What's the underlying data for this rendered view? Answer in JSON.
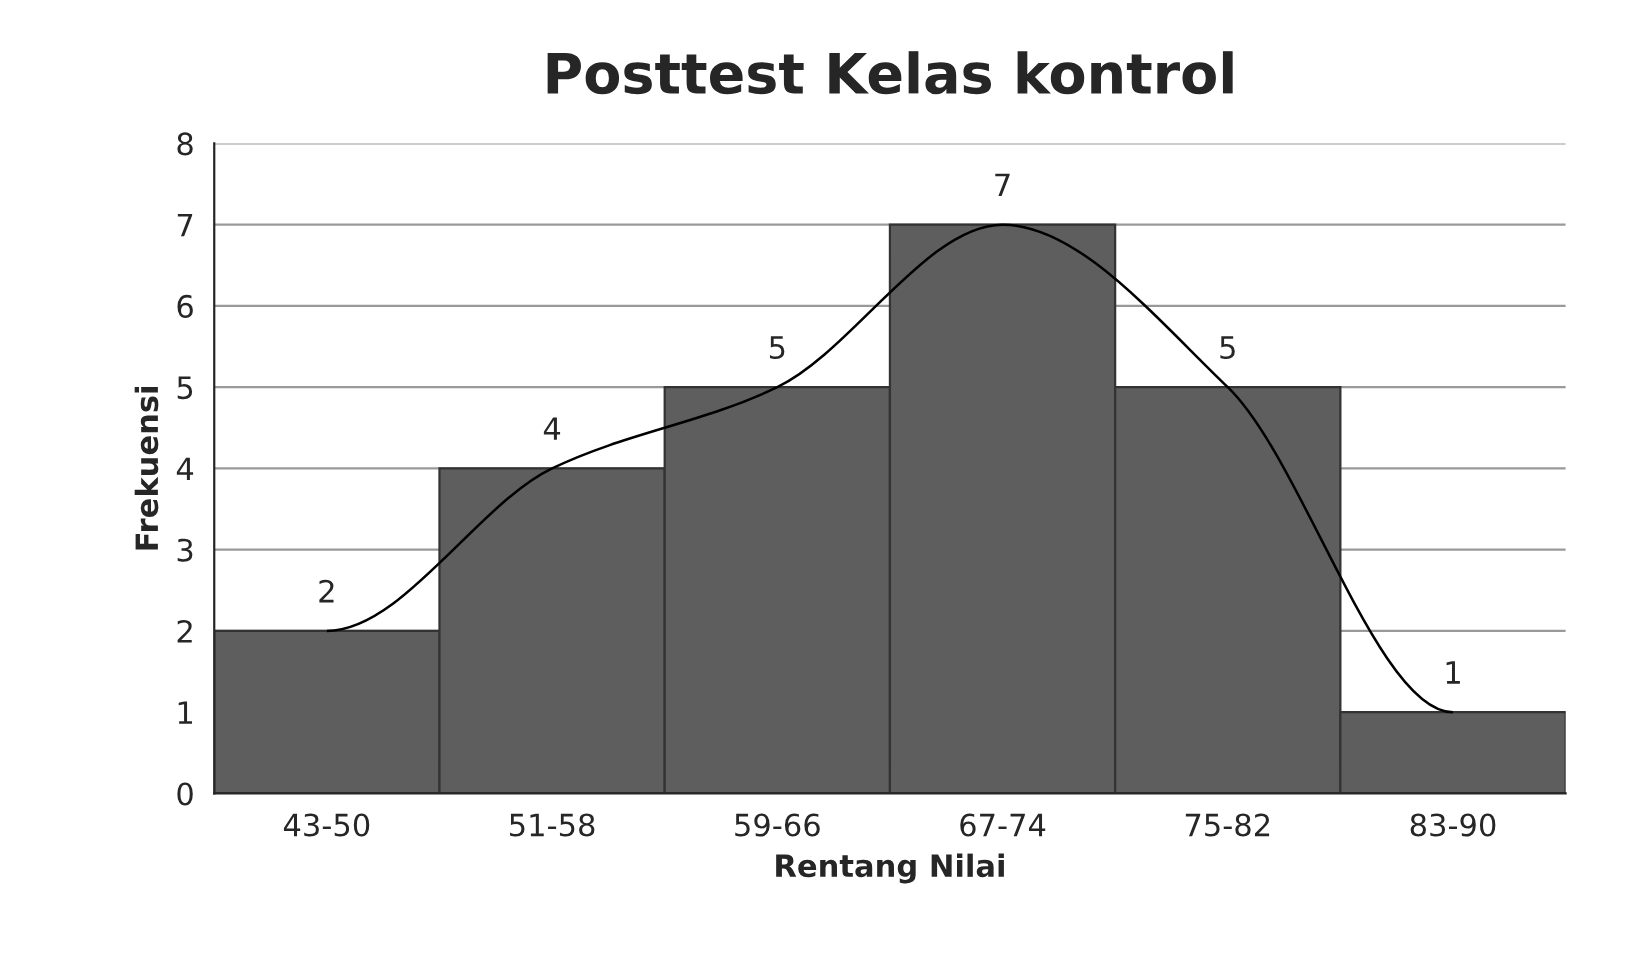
{
  "chart_data": {
    "type": "bar",
    "title": "Posttest Kelas kontrol",
    "xlabel": "Rentang Nilai",
    "ylabel": "Frekuensi",
    "categories": [
      "43-50",
      "51-58",
      "59-66",
      "67-74",
      "75-82",
      "83-90"
    ],
    "series": [
      {
        "color": "#5e5e5e",
        "values": [
          2,
          4,
          5,
          7,
          5,
          1
        ],
        "value_labels": [
          "2",
          "4",
          "5",
          "7",
          "5",
          "1"
        ]
      },
      {
        "type": "line",
        "color": "#000000",
        "values": [
          2,
          4,
          5,
          7,
          5,
          1
        ]
      }
    ],
    "ylim": [
      0,
      8
    ],
    "yticks": [
      0,
      1,
      2,
      3,
      4,
      5,
      6,
      7,
      8
    ],
    "grid": "y",
    "legend": false
  }
}
